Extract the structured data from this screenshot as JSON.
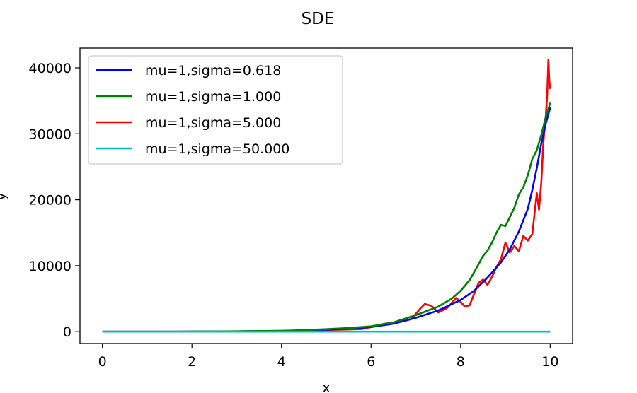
{
  "chart_data": {
    "type": "line",
    "title": "SDE",
    "xlabel": "x",
    "ylabel": "y",
    "xlim": [
      -0.5,
      10.5
    ],
    "ylim": [
      -1800,
      43000
    ],
    "xticks": [
      0,
      2,
      4,
      6,
      8,
      10
    ],
    "yticks": [
      0,
      10000,
      20000,
      30000,
      40000
    ],
    "grid": false,
    "legend": "top-left",
    "series": [
      {
        "name": "mu=1,sigma=0.618",
        "color": "#0000ff",
        "points": [
          [
            0,
            0
          ],
          [
            1,
            5
          ],
          [
            2,
            15
          ],
          [
            3,
            40
          ],
          [
            4,
            110
          ],
          [
            4.5,
            180
          ],
          [
            5,
            300
          ],
          [
            5.5,
            450
          ],
          [
            6,
            700
          ],
          [
            6.5,
            1200
          ],
          [
            7,
            2100
          ],
          [
            7.5,
            3200
          ],
          [
            8,
            4800
          ],
          [
            8.3,
            6200
          ],
          [
            8.6,
            8200
          ],
          [
            8.9,
            10500
          ],
          [
            9.1,
            12500
          ],
          [
            9.3,
            15200
          ],
          [
            9.5,
            18600
          ],
          [
            9.6,
            21500
          ],
          [
            9.7,
            24800
          ],
          [
            9.8,
            28500
          ],
          [
            9.9,
            31500
          ],
          [
            10,
            34000
          ]
        ]
      },
      {
        "name": "mu=1,sigma=1.000",
        "color": "#008000",
        "points": [
          [
            0,
            0
          ],
          [
            1,
            5
          ],
          [
            2,
            15
          ],
          [
            3,
            50
          ],
          [
            4,
            130
          ],
          [
            4.5,
            230
          ],
          [
            5,
            380
          ],
          [
            5.5,
            550
          ],
          [
            6,
            800
          ],
          [
            6.5,
            1400
          ],
          [
            7,
            2500
          ],
          [
            7.5,
            3800
          ],
          [
            7.8,
            5000
          ],
          [
            8,
            6200
          ],
          [
            8.2,
            7800
          ],
          [
            8.4,
            10200
          ],
          [
            8.5,
            11500
          ],
          [
            8.6,
            12300
          ],
          [
            8.7,
            13500
          ],
          [
            8.8,
            15000
          ],
          [
            8.9,
            16200
          ],
          [
            9.0,
            16000
          ],
          [
            9.1,
            17400
          ],
          [
            9.2,
            18800
          ],
          [
            9.3,
            20800
          ],
          [
            9.4,
            21900
          ],
          [
            9.5,
            23700
          ],
          [
            9.6,
            26200
          ],
          [
            9.7,
            27500
          ],
          [
            9.8,
            29800
          ],
          [
            9.9,
            32500
          ],
          [
            10,
            34700
          ]
        ]
      },
      {
        "name": "mu=1,sigma=5.000",
        "color": "#ff0000",
        "points": [
          [
            0,
            0
          ],
          [
            1,
            5
          ],
          [
            2,
            15
          ],
          [
            3,
            40
          ],
          [
            4,
            100
          ],
          [
            5,
            250
          ],
          [
            5.8,
            400
          ],
          [
            6.0,
            700
          ],
          [
            6.3,
            1200
          ],
          [
            6.6,
            1400
          ],
          [
            6.9,
            1900
          ],
          [
            7.1,
            3500
          ],
          [
            7.2,
            4200
          ],
          [
            7.35,
            3900
          ],
          [
            7.5,
            2900
          ],
          [
            7.7,
            3600
          ],
          [
            7.9,
            5100
          ],
          [
            8.0,
            4500
          ],
          [
            8.1,
            3800
          ],
          [
            8.2,
            4000
          ],
          [
            8.3,
            5700
          ],
          [
            8.4,
            7400
          ],
          [
            8.5,
            7900
          ],
          [
            8.6,
            7100
          ],
          [
            8.7,
            8300
          ],
          [
            8.8,
            9800
          ],
          [
            8.9,
            11000
          ],
          [
            9.0,
            13500
          ],
          [
            9.1,
            12000
          ],
          [
            9.2,
            13000
          ],
          [
            9.3,
            12200
          ],
          [
            9.4,
            14500
          ],
          [
            9.5,
            13800
          ],
          [
            9.6,
            14800
          ],
          [
            9.7,
            21000
          ],
          [
            9.75,
            18500
          ],
          [
            9.8,
            22500
          ],
          [
            9.85,
            29000
          ],
          [
            9.9,
            32500
          ],
          [
            9.93,
            35500
          ],
          [
            9.96,
            41200
          ],
          [
            9.98,
            38000
          ],
          [
            10,
            36800
          ]
        ]
      },
      {
        "name": "mu=1,sigma=50.000",
        "color": "#00bfbf",
        "points": [
          [
            0,
            0
          ],
          [
            10,
            0
          ]
        ]
      }
    ]
  }
}
